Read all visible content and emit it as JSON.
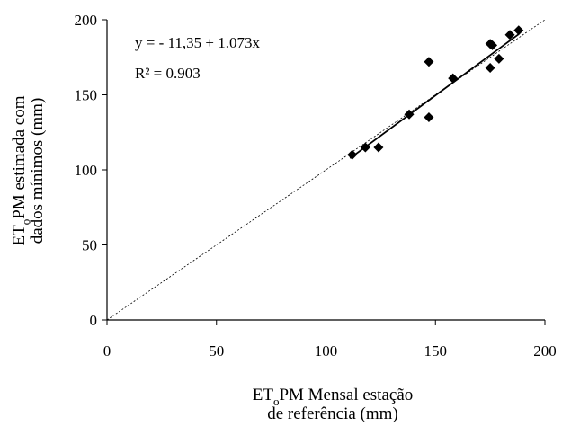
{
  "chart_data": {
    "type": "scatter",
    "xlabel": {
      "main": "ET",
      "sub": "o",
      "rest": "PM Mensal estação",
      "line2": "de referência (mm)"
    },
    "ylabel": {
      "main": "ET",
      "sub": "o",
      "rest": "PM estimada com",
      "line2": "dados mínimos (mm)"
    },
    "xlim": [
      0,
      200
    ],
    "ylim": [
      0,
      200
    ],
    "xticks": [
      "0",
      "50",
      "100",
      "150",
      "200"
    ],
    "yticks": [
      "0",
      "50",
      "100",
      "150",
      "200"
    ],
    "grid": false,
    "series": [
      {
        "points": [
          {
            "x": 112,
            "y": 110
          },
          {
            "x": 118,
            "y": 115
          },
          {
            "x": 124,
            "y": 115
          },
          {
            "x": 138,
            "y": 137
          },
          {
            "x": 147,
            "y": 172
          },
          {
            "x": 147,
            "y": 135
          },
          {
            "x": 158,
            "y": 161
          },
          {
            "x": 175,
            "y": 168
          },
          {
            "x": 175,
            "y": 184
          },
          {
            "x": 176,
            "y": 183
          },
          {
            "x": 179,
            "y": 174
          },
          {
            "x": 184,
            "y": 190
          },
          {
            "x": 188,
            "y": 193
          }
        ],
        "marker": "diamond",
        "color": "#000000"
      }
    ],
    "reference_line": {
      "kind": "1:1",
      "style": "dotted"
    },
    "fit_line": {
      "intercept": -11.35,
      "slope": 1.073,
      "x_range": [
        111,
        188
      ],
      "style": "solid"
    },
    "annotations": [
      "y = - 11,35 + 1.073x",
      "R² = 0.903"
    ]
  }
}
